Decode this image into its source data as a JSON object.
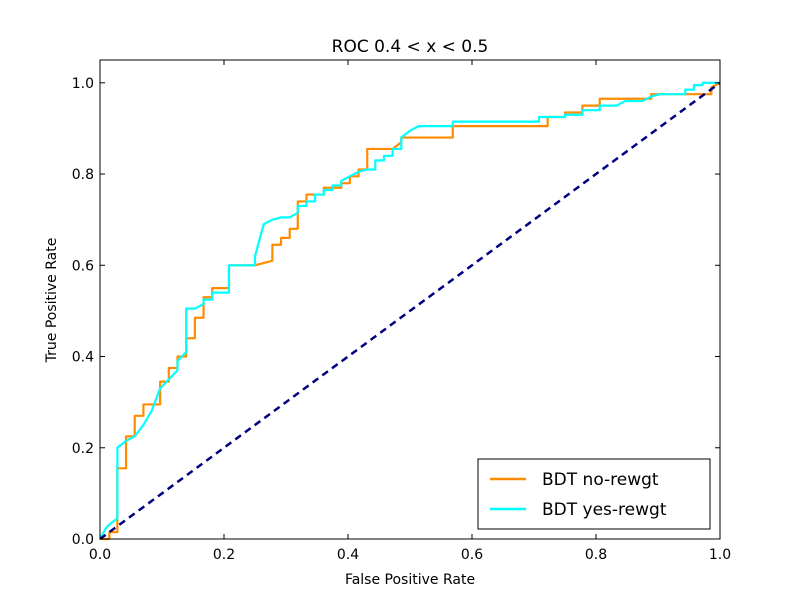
{
  "chart_data": {
    "type": "line",
    "title": "ROC 0.4 < x < 0.5",
    "xlabel": "False Positive Rate",
    "ylabel": "True Positive Rate",
    "xlim": [
      0.0,
      1.0
    ],
    "ylim": [
      0.0,
      1.05
    ],
    "xticks": [
      "0.0",
      "0.2",
      "0.4",
      "0.6",
      "0.8",
      "1.0"
    ],
    "yticks": [
      "0.0",
      "0.2",
      "0.4",
      "0.6",
      "0.8",
      "1.0"
    ],
    "grid": false,
    "legend_position": "lower-right",
    "series": [
      {
        "name": "BDT no-rewgt",
        "color": "#ff8c00",
        "x": [
          0.0,
          0.015,
          0.015,
          0.028,
          0.028,
          0.042,
          0.042,
          0.056,
          0.056,
          0.07,
          0.07,
          0.09,
          0.09,
          0.097,
          0.097,
          0.111,
          0.111,
          0.125,
          0.125,
          0.139,
          0.139,
          0.153,
          0.153,
          0.167,
          0.167,
          0.181,
          0.181,
          0.208,
          0.208,
          0.25,
          0.278,
          0.278,
          0.292,
          0.292,
          0.306,
          0.306,
          0.319,
          0.319,
          0.333,
          0.333,
          0.361,
          0.361,
          0.389,
          0.389,
          0.403,
          0.403,
          0.417,
          0.417,
          0.431,
          0.431,
          0.472,
          0.486,
          0.486,
          0.5,
          0.5,
          0.569,
          0.569,
          0.722,
          0.722,
          0.75,
          0.75,
          0.778,
          0.778,
          0.806,
          0.806,
          0.847,
          0.847,
          0.889,
          0.889,
          0.986,
          0.986,
          1.0
        ],
        "y": [
          0.0,
          0.0,
          0.015,
          0.015,
          0.155,
          0.155,
          0.225,
          0.225,
          0.27,
          0.27,
          0.295,
          0.295,
          0.295,
          0.295,
          0.345,
          0.345,
          0.375,
          0.375,
          0.4,
          0.4,
          0.44,
          0.44,
          0.485,
          0.485,
          0.53,
          0.53,
          0.55,
          0.55,
          0.6,
          0.6,
          0.61,
          0.645,
          0.645,
          0.66,
          0.66,
          0.68,
          0.68,
          0.74,
          0.74,
          0.755,
          0.755,
          0.77,
          0.77,
          0.78,
          0.78,
          0.795,
          0.795,
          0.81,
          0.81,
          0.855,
          0.855,
          0.87,
          0.88,
          0.88,
          0.88,
          0.88,
          0.905,
          0.905,
          0.925,
          0.925,
          0.935,
          0.935,
          0.95,
          0.95,
          0.965,
          0.965,
          0.965,
          0.965,
          0.975,
          0.975,
          0.99,
          1.0
        ]
      },
      {
        "name": "BDT yes-rewgt",
        "color": "#00ffff",
        "x": [
          0.0,
          0.01,
          0.018,
          0.028,
          0.028,
          0.042,
          0.056,
          0.07,
          0.083,
          0.097,
          0.111,
          0.125,
          0.125,
          0.139,
          0.139,
          0.153,
          0.167,
          0.167,
          0.181,
          0.181,
          0.194,
          0.208,
          0.208,
          0.25,
          0.25,
          0.264,
          0.278,
          0.292,
          0.306,
          0.319,
          0.319,
          0.333,
          0.333,
          0.347,
          0.347,
          0.361,
          0.361,
          0.375,
          0.375,
          0.389,
          0.389,
          0.403,
          0.417,
          0.431,
          0.444,
          0.444,
          0.458,
          0.458,
          0.472,
          0.472,
          0.486,
          0.486,
          0.5,
          0.514,
          0.542,
          0.569,
          0.569,
          0.708,
          0.708,
          0.736,
          0.75,
          0.75,
          0.778,
          0.778,
          0.806,
          0.806,
          0.833,
          0.847,
          0.875,
          0.889,
          0.903,
          0.944,
          0.944,
          0.958,
          0.958,
          0.972,
          0.972,
          1.0
        ],
        "y": [
          0.0,
          0.025,
          0.035,
          0.045,
          0.2,
          0.215,
          0.225,
          0.25,
          0.28,
          0.33,
          0.35,
          0.37,
          0.39,
          0.41,
          0.505,
          0.505,
          0.515,
          0.525,
          0.525,
          0.54,
          0.54,
          0.54,
          0.6,
          0.6,
          0.62,
          0.69,
          0.7,
          0.705,
          0.705,
          0.715,
          0.73,
          0.73,
          0.74,
          0.74,
          0.755,
          0.755,
          0.765,
          0.765,
          0.775,
          0.775,
          0.785,
          0.795,
          0.805,
          0.81,
          0.81,
          0.83,
          0.83,
          0.84,
          0.84,
          0.855,
          0.855,
          0.88,
          0.895,
          0.905,
          0.905,
          0.905,
          0.915,
          0.915,
          0.925,
          0.925,
          0.925,
          0.93,
          0.93,
          0.94,
          0.94,
          0.95,
          0.95,
          0.96,
          0.96,
          0.97,
          0.975,
          0.975,
          0.985,
          0.985,
          0.995,
          0.995,
          1.0,
          1.0
        ]
      },
      {
        "name": "",
        "color": "#000080",
        "dashed": true,
        "x": [
          0.0,
          1.0
        ],
        "y": [
          0.0,
          1.0
        ]
      }
    ]
  }
}
